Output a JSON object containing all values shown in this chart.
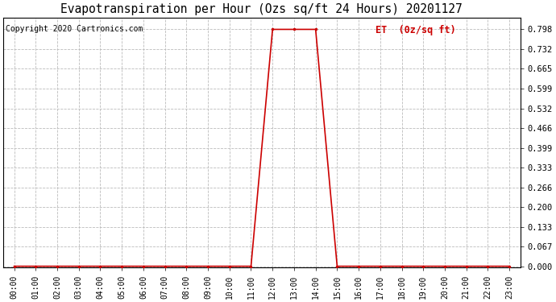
{
  "title": "Evapotranspiration per Hour (Ozs sq/ft 24 Hours) 20201127",
  "copyright_text": "Copyright 2020 Cartronics.com",
  "legend_label": "ET  (0z/sq ft)",
  "background_color": "#ffffff",
  "line_color": "#cc0000",
  "grid_color": "#bbbbbb",
  "title_color": "#000000",
  "copyright_color": "#000000",
  "legend_color": "#cc0000",
  "x_hours": [
    0,
    1,
    2,
    3,
    4,
    5,
    6,
    7,
    8,
    9,
    10,
    11,
    12,
    13,
    14,
    15,
    16,
    17,
    18,
    19,
    20,
    21,
    22,
    23
  ],
  "y_values": [
    0,
    0,
    0,
    0,
    0,
    0,
    0,
    0,
    0,
    0,
    0,
    0,
    0.798,
    0.798,
    0.798,
    0,
    0,
    0,
    0,
    0,
    0,
    0,
    0,
    0
  ],
  "ylim_min": -0.005,
  "ylim_max": 0.838,
  "yticks": [
    0.0,
    0.067,
    0.133,
    0.2,
    0.266,
    0.333,
    0.399,
    0.466,
    0.532,
    0.599,
    0.665,
    0.732,
    0.798
  ],
  "marker": ".",
  "marker_size": 3,
  "line_width": 1.2,
  "title_fontsize": 10.5,
  "copyright_fontsize": 7,
  "legend_fontsize": 8.5,
  "tick_fontsize": 7,
  "ytick_fontsize": 7.5
}
